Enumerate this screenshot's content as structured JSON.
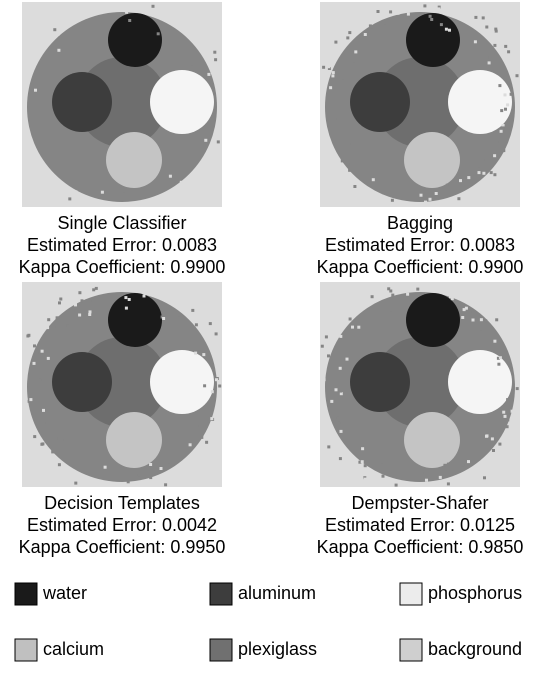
{
  "panels": [
    {
      "title": "Single Classifier",
      "error": "Estimated Error: 0.0083",
      "kappa": "Kappa Coefficient: 0.9900"
    },
    {
      "title": "Bagging",
      "error": "Estimated Error: 0.0083",
      "kappa": "Kappa Coefficient: 0.9900"
    },
    {
      "title": "Decision Templates",
      "error": "Estimated Error: 0.0042",
      "kappa": "Kappa Coefficient: 0.9950"
    },
    {
      "title": "Dempster-Shafer",
      "error": "Estimated Error: 0.0125",
      "kappa": "Kappa Coefficient: 0.9850"
    }
  ],
  "legend": [
    {
      "label": "water",
      "color": "#1a1a1a"
    },
    {
      "label": "aluminum",
      "color": "#3d3d3d"
    },
    {
      "label": "phosphorus",
      "color": "#ececec"
    },
    {
      "label": "calcium",
      "color": "#c0c0c0"
    },
    {
      "label": "plexiglass",
      "color": "#707070"
    },
    {
      "label": "background",
      "color": "#cfcfcf"
    }
  ]
}
